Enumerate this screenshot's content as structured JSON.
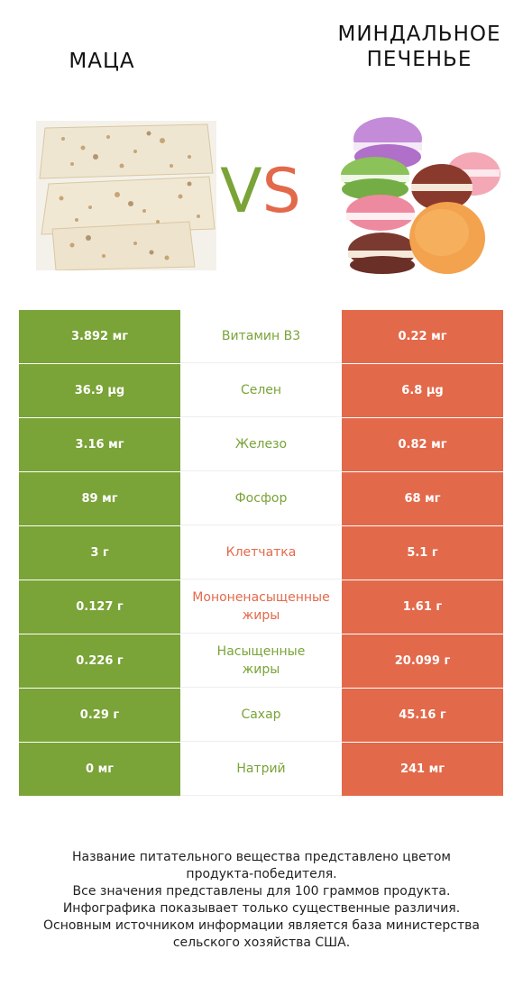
{
  "header": {
    "left_title": "МАЦА",
    "right_title_line1": "МИНДАЛЬНОЕ",
    "right_title_line2": "ПЕЧЕНЬЕ",
    "vs_v": "V",
    "vs_s": "S"
  },
  "colors": {
    "left_accent": "#7aa338",
    "right_accent": "#e3694b"
  },
  "rows": [
    {
      "left": "3.892 мг",
      "nutrient": "Витамин B3",
      "right": "0.22 мг",
      "winner": "left"
    },
    {
      "left": "36.9 µg",
      "nutrient": "Селен",
      "right": "6.8 µg",
      "winner": "left"
    },
    {
      "left": "3.16 мг",
      "nutrient": "Железо",
      "right": "0.82 мг",
      "winner": "left"
    },
    {
      "left": "89 мг",
      "nutrient": "Фосфор",
      "right": "68 мг",
      "winner": "left"
    },
    {
      "left": "3 г",
      "nutrient": "Клетчатка",
      "right": "5.1 г",
      "winner": "right"
    },
    {
      "left": "0.127 г",
      "nutrient": "Мононенасыщенные жиры",
      "nutrient_line1": "Мононенасыщенные",
      "nutrient_line2": "жиры",
      "right": "1.61 г",
      "winner": "right"
    },
    {
      "left": "0.226 г",
      "nutrient": "Насыщенные жиры",
      "nutrient_line1": "Насыщенные",
      "nutrient_line2": "жиры",
      "right": "20.099 г",
      "winner": "left"
    },
    {
      "left": "0.29 г",
      "nutrient": "Сахар",
      "right": "45.16 г",
      "winner": "left"
    },
    {
      "left": "0 мг",
      "nutrient": "Натрий",
      "right": "241 мг",
      "winner": "left"
    }
  ],
  "footer": {
    "line1": "Название питательного вещества представлено цветом",
    "line2": "продукта-победителя.",
    "line3": "Все значения представлены для 100 граммов продукта.",
    "line4": "Инфографика показывает только существенные различия.",
    "line5": "Основным источником информации является база министерства",
    "line6": "сельского хозяйства США."
  }
}
